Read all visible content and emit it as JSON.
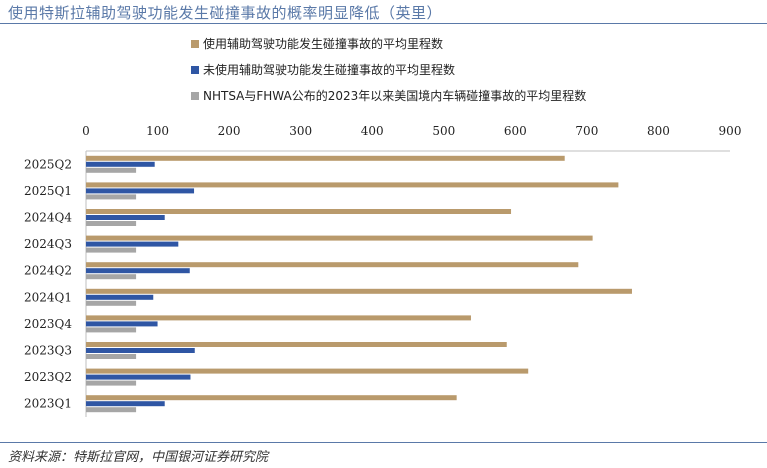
{
  "title": "使用特斯拉辅助驾驶功能发生碰撞事故的概率明显降低（英里）",
  "source": "资料来源：特斯拉官网，中国银河证券研究院",
  "chart_data": {
    "type": "bar",
    "orientation": "horizontal",
    "categories": [
      "2025Q2",
      "2025Q1",
      "2024Q4",
      "2024Q3",
      "2024Q2",
      "2024Q1",
      "2023Q4",
      "2023Q3",
      "2023Q2",
      "2023Q1"
    ],
    "series": [
      {
        "name": "使用辅助驾驶功能发生碰撞事故的平均里程数",
        "color": "#b99a6c",
        "values": [
          669,
          744,
          594,
          708,
          688,
          763,
          538,
          588,
          618,
          518
        ]
      },
      {
        "name": "未使用辅助驾驶功能发生碰撞事故的平均里程数",
        "color": "#2f56a4",
        "values": [
          96,
          151,
          110,
          129,
          145,
          94,
          100,
          152,
          146,
          110
        ]
      },
      {
        "name": "NHTSA与FHWA公布的2023年以来美国境内车辆碰撞事故的平均里程数",
        "color": "#a6a6a6",
        "values": [
          70,
          70,
          70,
          70,
          70,
          70,
          70,
          70,
          70,
          70
        ]
      }
    ],
    "xlim": [
      0,
      900
    ],
    "xticks": [
      0,
      100,
      200,
      300,
      400,
      500,
      600,
      700,
      800,
      900
    ],
    "x_axis_position": "top",
    "legend_position": "top",
    "grid": false
  }
}
